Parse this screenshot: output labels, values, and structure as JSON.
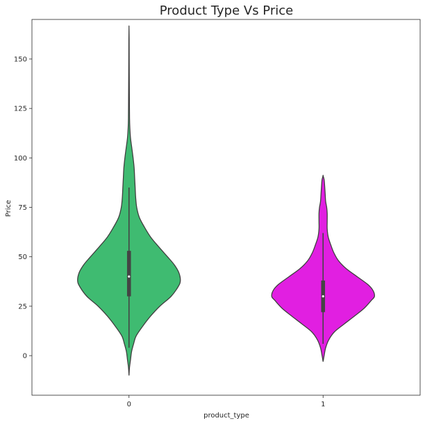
{
  "chart_data": {
    "type": "violin",
    "title": "Product Type Vs Price",
    "xlabel": "product_type",
    "ylabel": "Price",
    "categories": [
      "0",
      "1"
    ],
    "ylim": [
      -20,
      170
    ],
    "yticks": [
      0,
      25,
      50,
      75,
      100,
      125,
      150
    ],
    "grid": false,
    "legend": "none",
    "violins": [
      {
        "category": "0",
        "color": "#3fbb71",
        "min": 4,
        "q1": 30,
        "median": 40,
        "q3": 53,
        "max": 85,
        "extent": [
          -10,
          166
        ],
        "density_profile": [
          [
            -10,
            0.0
          ],
          [
            -6,
            0.01
          ],
          [
            -2,
            0.03
          ],
          [
            2,
            0.05
          ],
          [
            6,
            0.09
          ],
          [
            10,
            0.14
          ],
          [
            15,
            0.27
          ],
          [
            20,
            0.42
          ],
          [
            25,
            0.6
          ],
          [
            30,
            0.82
          ],
          [
            35,
            0.96
          ],
          [
            38,
            1.0
          ],
          [
            42,
            0.97
          ],
          [
            46,
            0.88
          ],
          [
            50,
            0.75
          ],
          [
            55,
            0.58
          ],
          [
            60,
            0.42
          ],
          [
            65,
            0.3
          ],
          [
            70,
            0.2
          ],
          [
            75,
            0.15
          ],
          [
            80,
            0.13
          ],
          [
            85,
            0.12
          ],
          [
            90,
            0.11
          ],
          [
            95,
            0.1
          ],
          [
            100,
            0.08
          ],
          [
            105,
            0.055
          ],
          [
            110,
            0.03
          ],
          [
            115,
            0.017
          ],
          [
            120,
            0.011
          ],
          [
            130,
            0.008
          ],
          [
            140,
            0.006
          ],
          [
            150,
            0.004
          ],
          [
            160,
            0.003
          ],
          [
            166,
            0.0
          ]
        ]
      },
      {
        "category": "1",
        "color": "#e11fe1",
        "min": 6,
        "q1": 22,
        "median": 30,
        "q3": 38,
        "max": 62,
        "extent": [
          -3,
          91
        ],
        "density_profile": [
          [
            -3,
            0.0
          ],
          [
            0,
            0.02
          ],
          [
            4,
            0.05
          ],
          [
            8,
            0.11
          ],
          [
            12,
            0.22
          ],
          [
            16,
            0.41
          ],
          [
            20,
            0.61
          ],
          [
            24,
            0.8
          ],
          [
            28,
            0.94
          ],
          [
            30,
            1.0
          ],
          [
            33,
            0.97
          ],
          [
            36,
            0.87
          ],
          [
            40,
            0.66
          ],
          [
            44,
            0.45
          ],
          [
            48,
            0.3
          ],
          [
            52,
            0.21
          ],
          [
            56,
            0.15
          ],
          [
            60,
            0.1
          ],
          [
            64,
            0.08
          ],
          [
            68,
            0.08
          ],
          [
            72,
            0.08
          ],
          [
            75,
            0.07
          ],
          [
            78,
            0.05
          ],
          [
            82,
            0.04
          ],
          [
            86,
            0.03
          ],
          [
            89,
            0.02
          ],
          [
            91,
            0.0
          ]
        ]
      }
    ]
  }
}
